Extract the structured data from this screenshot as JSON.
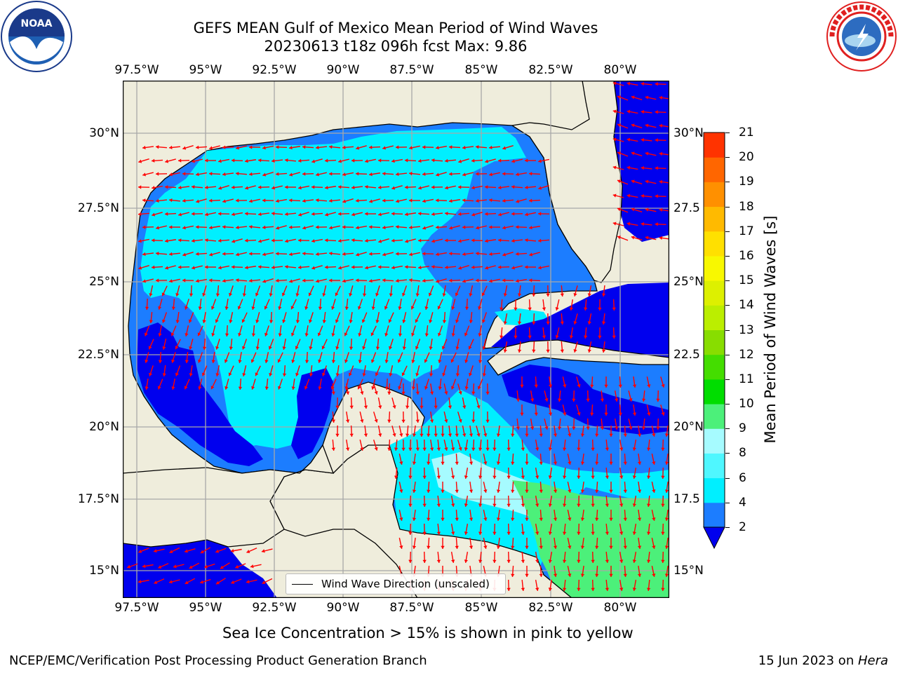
{
  "header": {
    "title_line1": "GEFS MEAN Gulf of Mexico Mean Period of Wind Waves",
    "title_line2": "20230613 t18z 096h fcst   Max: 9.86"
  },
  "logos": {
    "left": "NOAA",
    "left_ring_text": "NATIONAL OCEANIC AND ATMOSPHERIC ADMINISTRATION · U.S. DEPARTMENT OF COMMERCE",
    "right_ring_text": "NATIONAL WEATHER SERVICE"
  },
  "map": {
    "lon_ticks": [
      "97.5°W",
      "95°W",
      "92.5°W",
      "90°W",
      "87.5°W",
      "85°W",
      "82.5°W",
      "80°W"
    ],
    "lat_ticks_left": [
      "30°N",
      "27.5°N",
      "25°N",
      "22.5°N",
      "20°N",
      "17.5°N",
      "15°N"
    ],
    "lat_ticks_right": [
      "30°N",
      "27.5",
      "25°N",
      "22.5",
      "20°N",
      "17.5",
      "15°N"
    ],
    "legend_label": "Wind Wave Direction (unscaled)",
    "colors": {
      "land": "#efeddc",
      "band_2_4": "#1c7dff",
      "band_lt2": "#0000ee",
      "band_4_6": "#00efff",
      "band_6_8": "#4ff7ff",
      "band_8_9": "#a6fbff",
      "band_9_10": "#4cf07a",
      "arrow": "#ff0000"
    }
  },
  "colorbar": {
    "label": "Mean Period of Wind Waves [s]",
    "levels": [
      "2",
      "4",
      "6",
      "8",
      "9",
      "10",
      "11",
      "12",
      "13",
      "14",
      "15",
      "16",
      "17",
      "18",
      "19",
      "20",
      "21"
    ],
    "colors": [
      "#1c7dff",
      "#00efff",
      "#4ff7ff",
      "#a6fbff",
      "#4cf07a",
      "#00dd00",
      "#44dd00",
      "#88dd00",
      "#bbee00",
      "#ddf000",
      "#f8f800",
      "#ffe000",
      "#ffba00",
      "#ff9000",
      "#ff6600",
      "#ff3300",
      "#ff0000"
    ],
    "under_color": "#0000ee"
  },
  "footer": {
    "note": "Sea Ice Concentration > 15% is shown in pink to yellow",
    "credit": "NCEP/EMC/Verification Post Processing Product Generation Branch",
    "date_prefix": "15 Jun 2023 on ",
    "host": "Hera"
  }
}
